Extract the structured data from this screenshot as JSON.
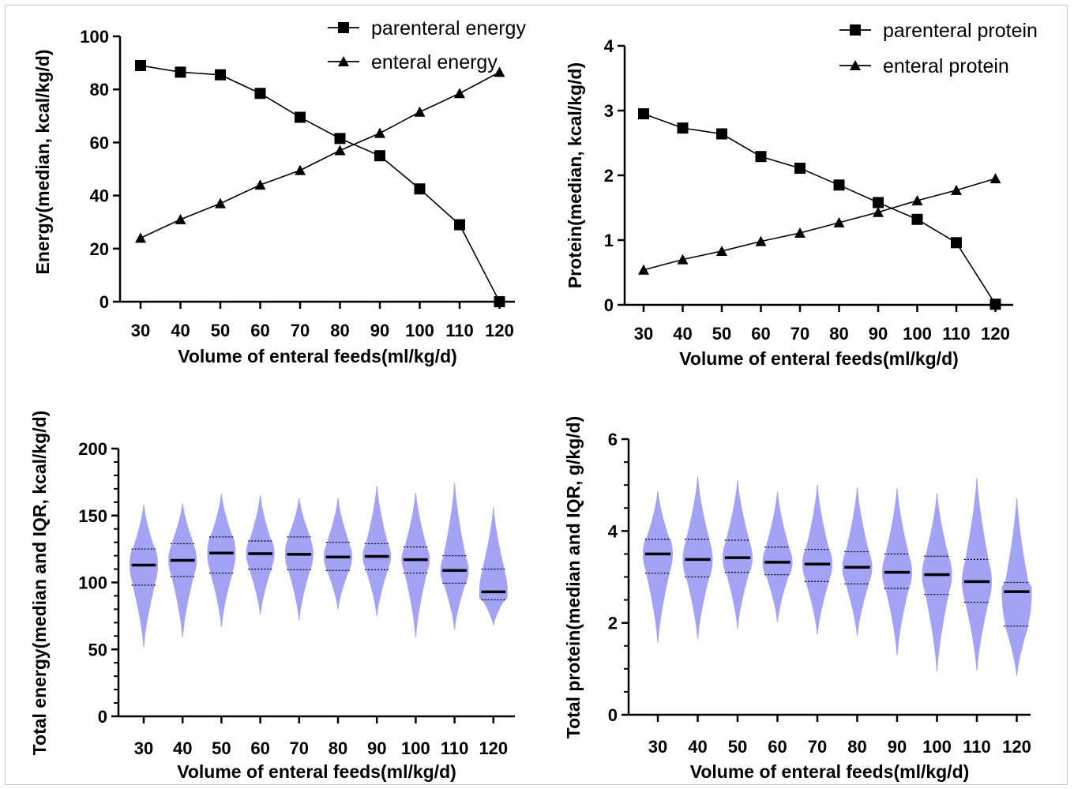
{
  "chart_data": [
    {
      "type": "line",
      "xlabel": "Volume of enteral feeds(ml/kg/d)",
      "ylabel": "Energy(median, kcal/kg/d)",
      "x": [
        30,
        40,
        50,
        60,
        70,
        80,
        90,
        100,
        110,
        120
      ],
      "ylim": [
        0,
        100
      ],
      "yticks": [
        0,
        20,
        40,
        60,
        80,
        100
      ],
      "legend_position": "top-right",
      "series": [
        {
          "name": "parenteral energy",
          "marker": "square",
          "values": [
            89,
            86.5,
            85.5,
            78.5,
            69.5,
            61.5,
            55,
            42.5,
            29,
            0
          ]
        },
        {
          "name": "enteral energy",
          "marker": "triangle",
          "values": [
            24,
            31,
            37,
            44,
            49.5,
            57,
            63.5,
            71.5,
            78.5,
            86.5
          ]
        }
      ]
    },
    {
      "type": "line",
      "xlabel": "Volume of enteral feeds(ml/kg/d)",
      "ylabel": "Protein(median, kcal/kg/d)",
      "x": [
        30,
        40,
        50,
        60,
        70,
        80,
        90,
        100,
        110,
        120
      ],
      "ylim": [
        0,
        4
      ],
      "yticks": [
        0,
        1,
        2,
        3,
        4
      ],
      "legend_position": "top-right",
      "series": [
        {
          "name": "parenteral protein",
          "marker": "square",
          "values": [
            2.95,
            2.73,
            2.64,
            2.29,
            2.11,
            1.85,
            1.58,
            1.32,
            0.96,
            0.01
          ]
        },
        {
          "name": "enteral protein",
          "marker": "triangle",
          "values": [
            0.54,
            0.7,
            0.83,
            0.98,
            1.11,
            1.27,
            1.43,
            1.61,
            1.77,
            1.95
          ]
        }
      ]
    },
    {
      "type": "violin",
      "xlabel": "Volume of enteral feeds(ml/kg/d)",
      "ylabel": "Total energy(median and IQR, kcal/kg/d)",
      "x": [
        30,
        40,
        50,
        60,
        70,
        80,
        90,
        100,
        110,
        120
      ],
      "ylim": [
        0,
        200
      ],
      "yticks": [
        0,
        50,
        100,
        150,
        200
      ],
      "fill_color": "#a3a3f5",
      "medians": [
        113,
        116.5,
        122,
        121.5,
        121,
        119,
        119.5,
        117,
        109,
        93
      ],
      "q1": [
        98,
        104.5,
        107,
        110,
        109.5,
        109,
        109.5,
        107,
        99.5,
        87
      ],
      "q3": [
        125,
        129,
        134,
        131,
        134,
        130,
        129,
        126.5,
        120,
        110
      ],
      "min": [
        52,
        59,
        67,
        76,
        72,
        80,
        75,
        59,
        65,
        68
      ],
      "max": [
        158,
        159,
        166,
        165,
        163,
        163,
        172,
        167,
        174,
        156
      ]
    },
    {
      "type": "violin",
      "xlabel": "Volume of enteral feeds(ml/kg/d)",
      "ylabel": "Total protein(median and IQR, g/kg/d)",
      "x": [
        30,
        40,
        50,
        60,
        70,
        80,
        90,
        100,
        110,
        120
      ],
      "ylim": [
        0,
        6
      ],
      "yticks": [
        0,
        2,
        4,
        6
      ],
      "fill_color": "#a3a3f5",
      "medians": [
        3.5,
        3.38,
        3.42,
        3.32,
        3.28,
        3.21,
        3.1,
        3.05,
        2.9,
        2.68
      ],
      "q1": [
        3.08,
        3.0,
        3.1,
        3.05,
        2.9,
        2.85,
        2.75,
        2.62,
        2.45,
        1.93
      ],
      "q3": [
        3.82,
        3.82,
        3.8,
        3.65,
        3.6,
        3.55,
        3.5,
        3.45,
        3.38,
        2.88
      ],
      "min": [
        1.57,
        1.65,
        1.88,
        2.02,
        1.75,
        1.72,
        1.3,
        0.95,
        0.96,
        0.85
      ],
      "max": [
        4.87,
        5.17,
        5.1,
        4.85,
        5.0,
        4.95,
        4.93,
        4.82,
        5.15,
        4.72
      ]
    }
  ]
}
